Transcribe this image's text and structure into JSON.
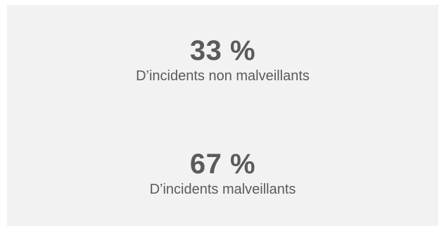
{
  "stats": [
    {
      "value": "33 %",
      "label": "D’incidents non malveillants"
    },
    {
      "value": "67 %",
      "label": "D’incidents malveillants"
    }
  ],
  "colors": {
    "panel_background": "#f2f2f2",
    "text": "#5b5b5b"
  }
}
